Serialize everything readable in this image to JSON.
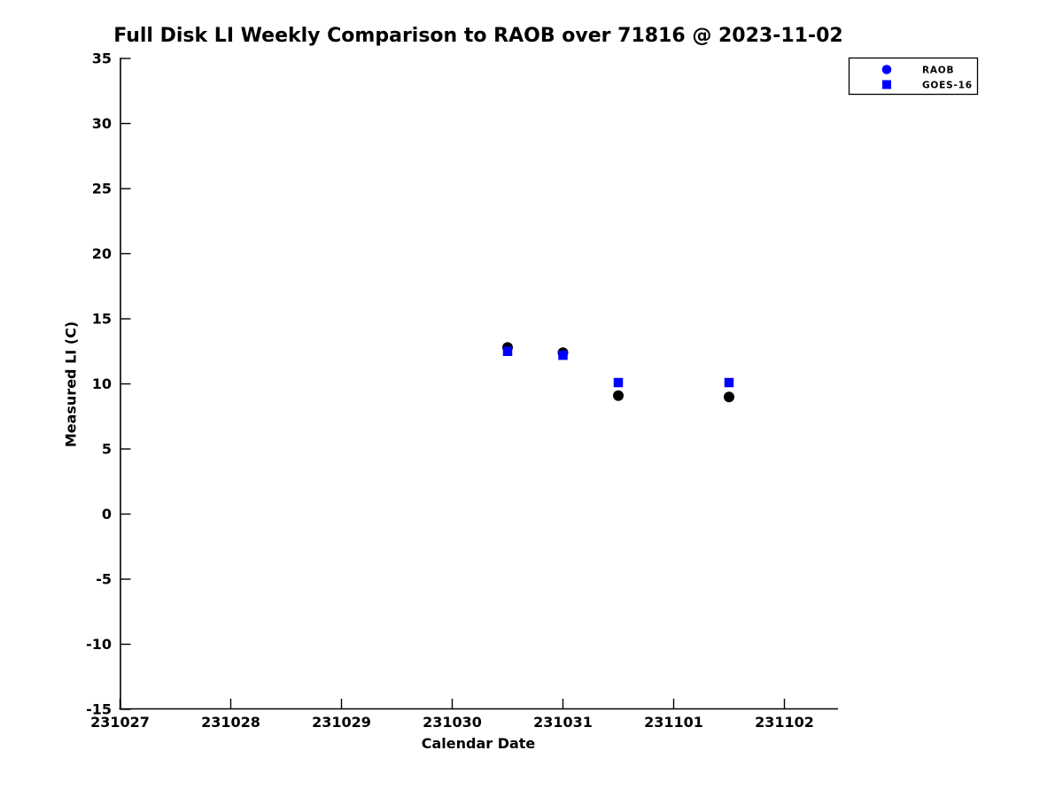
{
  "colors": {
    "background": "#ffffff",
    "axis": "#000000",
    "raob_marker": "#000000",
    "goes_marker": "#0000ff",
    "legend_marker": "#0000ff"
  },
  "chart_data": {
    "type": "scatter",
    "title": "Full Disk LI Weekly Comparison to RAOB over 71816 @ 2023-11-02",
    "xlabel": "Calendar Date",
    "ylabel": "Measured LI (C)",
    "x_tick_labels": [
      "231027",
      "231028",
      "231029",
      "231030",
      "231031",
      "231101",
      "231102"
    ],
    "y_ticks": [
      35,
      30,
      25,
      20,
      15,
      10,
      5,
      0,
      -5,
      -10,
      -15
    ],
    "ylim": [
      -15,
      35
    ],
    "grid": false,
    "legend_position": "top-right",
    "series": [
      {
        "name": "RAOB",
        "marker": "circle",
        "marker_color": "#000000",
        "x": [
          231030.5,
          231031.0,
          231031.5,
          231101.5
        ],
        "y": [
          12.8,
          12.4,
          9.1,
          9.0
        ]
      },
      {
        "name": "GOES-16",
        "marker": "square",
        "marker_color": "#0000ff",
        "x": [
          231030.5,
          231031.0,
          231031.5,
          231101.5
        ],
        "y": [
          12.5,
          12.2,
          10.1,
          10.1
        ]
      }
    ],
    "legend": {
      "entries": [
        {
          "label": "RAOB",
          "marker": "circle",
          "color": "#0000ff"
        },
        {
          "label": "GOES-16",
          "marker": "square",
          "color": "#0000ff"
        }
      ]
    }
  }
}
